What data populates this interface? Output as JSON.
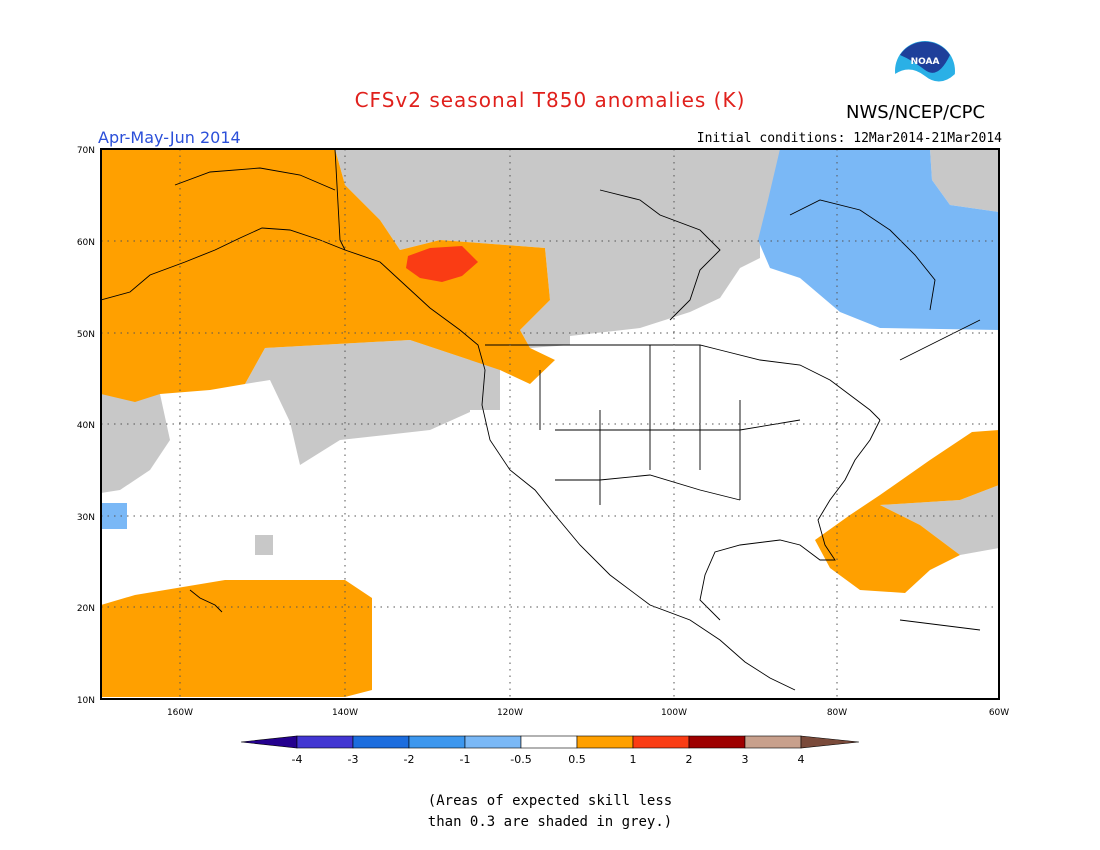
{
  "header": {
    "title": "CFSv2 seasonal T850 anomalies (K)",
    "organization": "NWS/NCEP/CPC",
    "logo_text": "NOAA",
    "season": "Apr-May-Jun 2014",
    "initial_conditions": "Initial conditions: 12Mar2014-21Mar2014"
  },
  "map": {
    "lat_labels": [
      "70N",
      "60N",
      "50N",
      "40N",
      "30N",
      "20N",
      "10N"
    ],
    "lon_labels": [
      "160W",
      "140W",
      "120W",
      "100W",
      "80W",
      "60W"
    ],
    "lat_range": [
      10,
      70
    ],
    "lon_range": [
      -172,
      -60
    ],
    "grid": "dotted"
  },
  "colorbar": {
    "tick_labels": [
      "-4",
      "-3",
      "-2",
      "-1",
      "-0.5",
      "0.5",
      "1",
      "2",
      "3",
      "4"
    ],
    "colors": {
      "below_-4": "#24008e",
      "-4_-3": "#4236d2",
      "-3_-2": "#1c6dde",
      "-2_-1": "#3d97ee",
      "-1_-0.5": "#7ab8f6",
      "-0.5_0.5": "#ffffff",
      "0.5_1": "#ffa000",
      "1_2": "#fa3c14",
      "2_3": "#9e0000",
      "3_4": "#c8a08c",
      "above_4": "#7a4a3a"
    }
  },
  "legend_note": {
    "line1": "(Areas of expected skill less",
    "line2": "than 0.3 are shaded in grey.)"
  },
  "colors": {
    "grey_low_skill": "#c8c8c8",
    "orange": "#ffa000",
    "red": "#fa3c14",
    "light_blue": "#7ab8f6"
  }
}
